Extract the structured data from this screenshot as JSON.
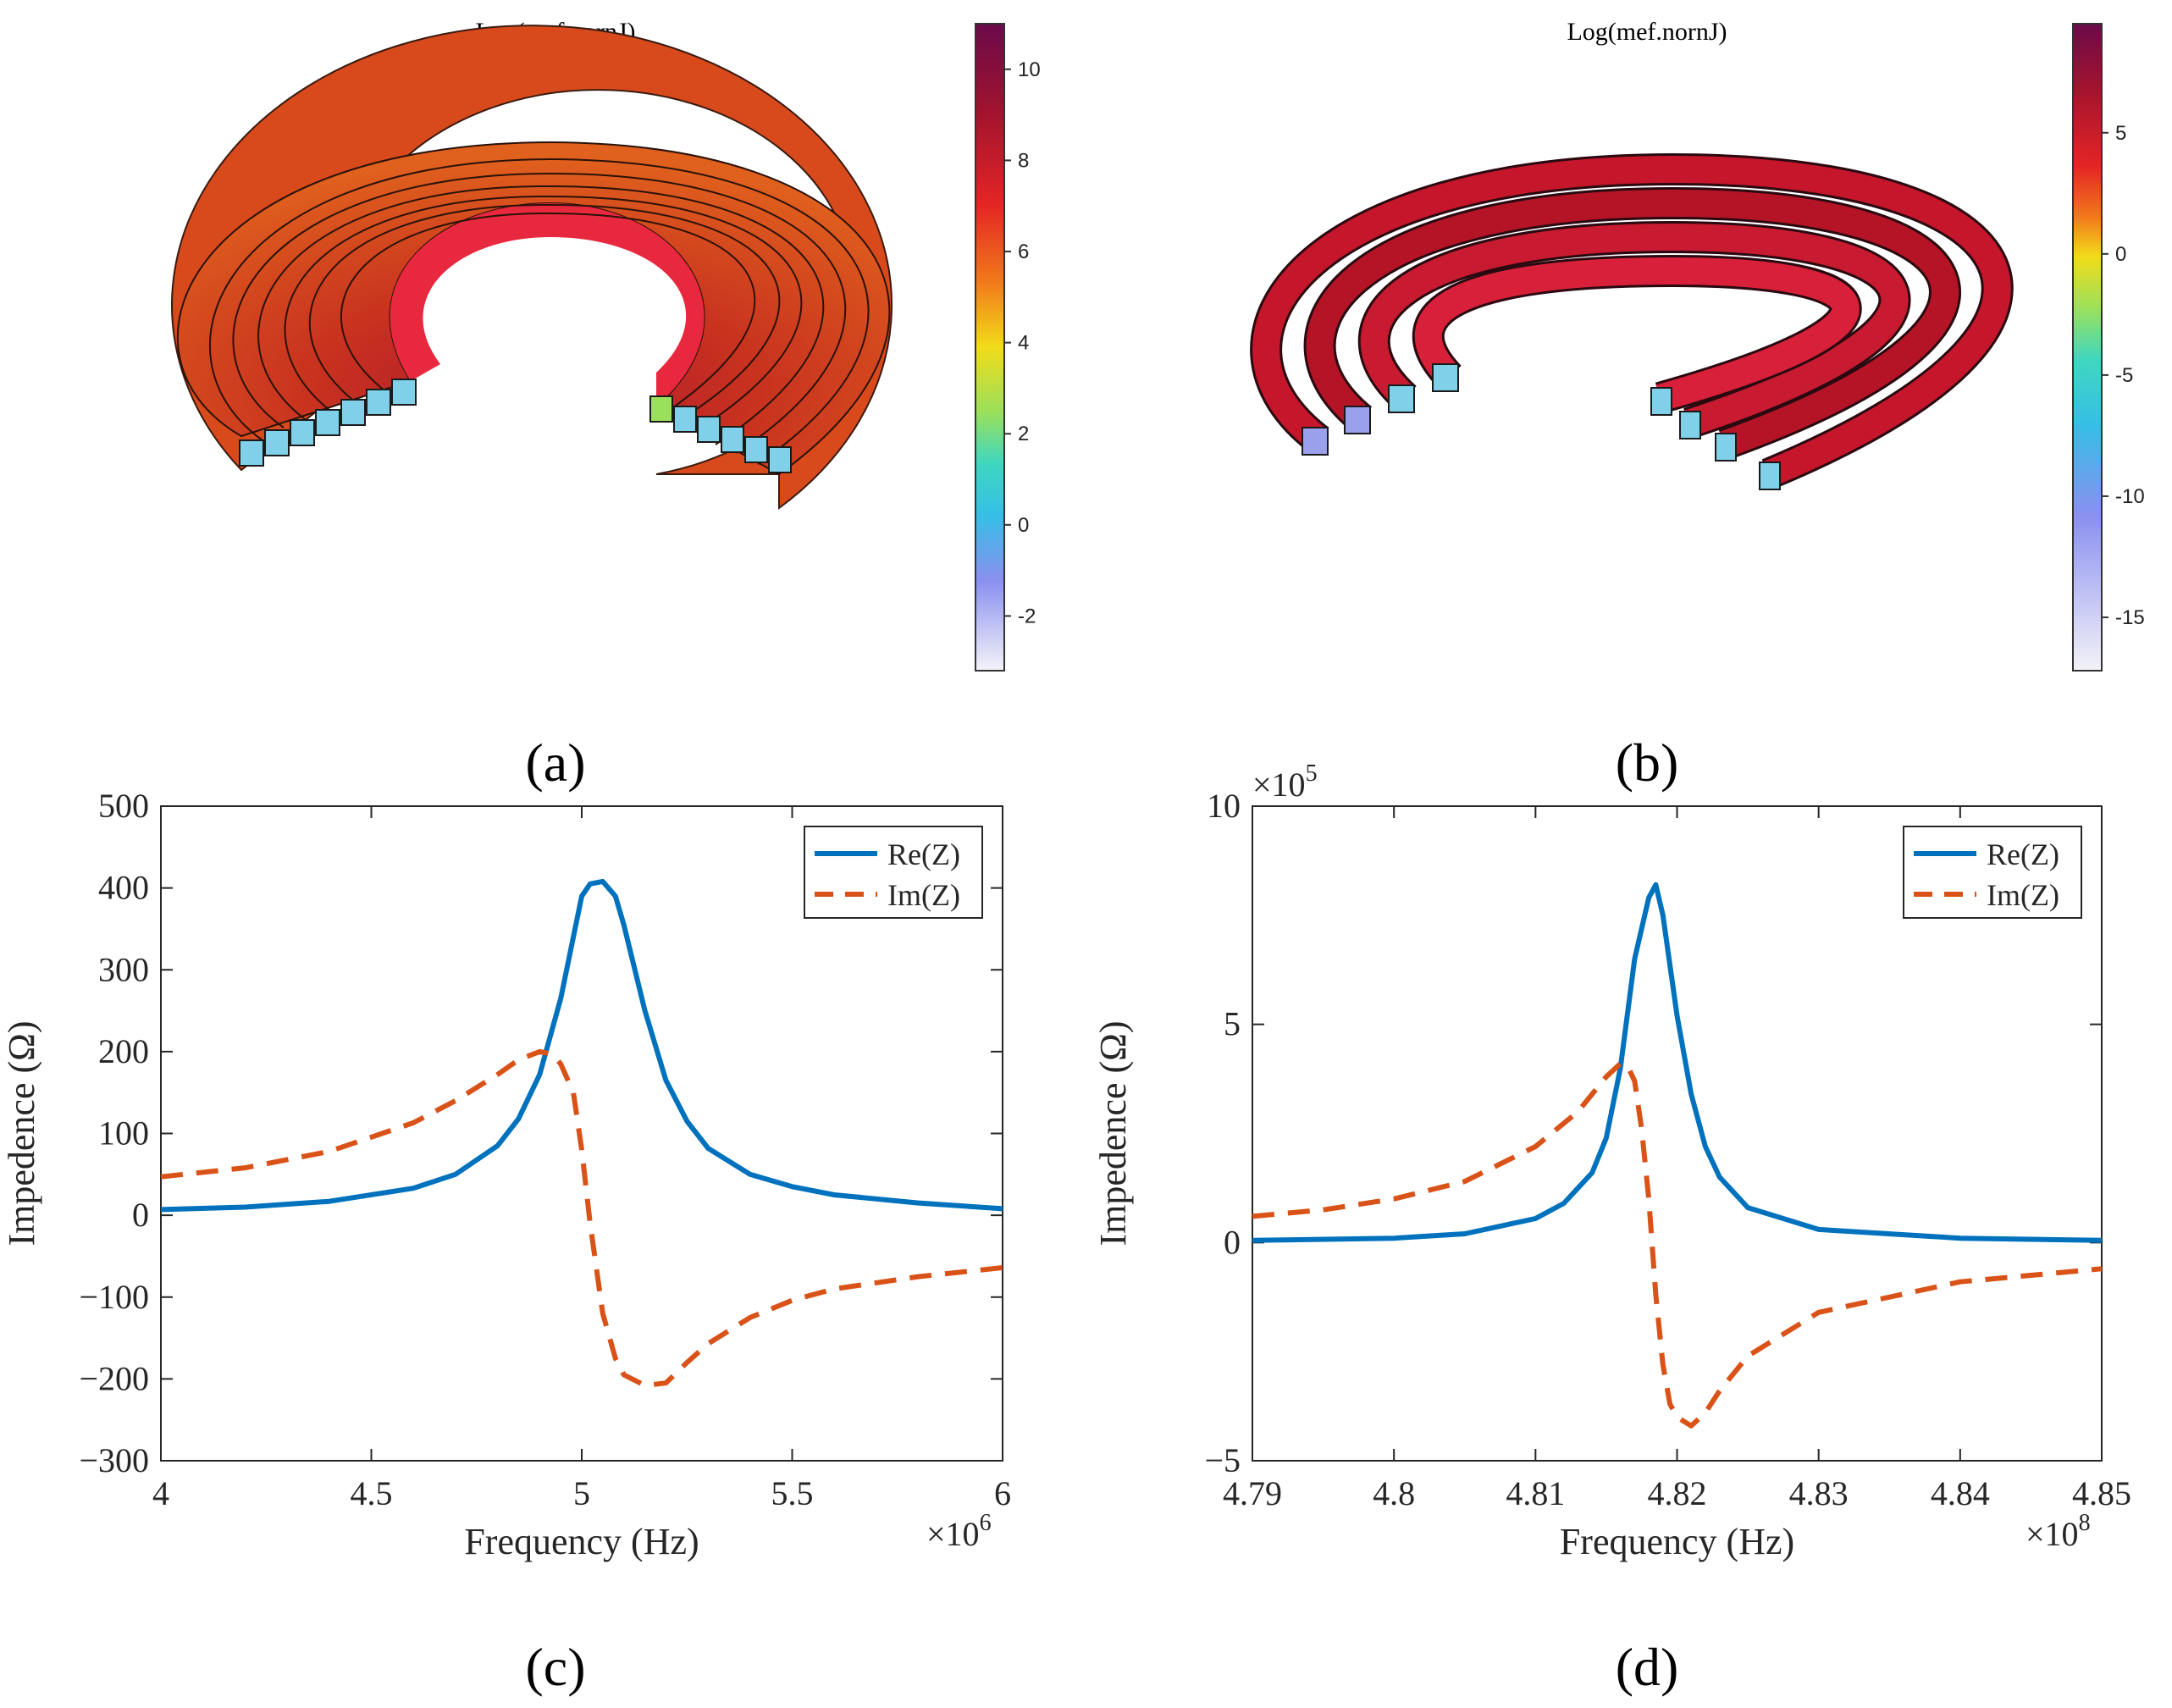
{
  "colors": {
    "re_line": "#0072BD",
    "im_line": "#D95319",
    "axis": "#262626",
    "coil_orange": "#E0541F",
    "coil_red": "#B81E2C",
    "coil_bore": "#E8283E",
    "port_fill": "#7FD0E8",
    "port_core": "#8E8FE6"
  },
  "panels": {
    "a": {
      "caption": "(a)",
      "colorbar_title": "Log(mef.nornJ)",
      "colorbar_ticks": [
        "10",
        "8",
        "6",
        "4",
        "2",
        "0",
        "-2"
      ]
    },
    "b": {
      "caption": "(b)",
      "colorbar_title": "Log(mef.nornJ)",
      "colorbar_ticks": [
        "5",
        "0",
        "-5",
        "-10",
        "-15"
      ]
    },
    "c": {
      "caption": "(c)"
    },
    "d": {
      "caption": "(d)"
    }
  },
  "chart_data": [
    {
      "type": "line",
      "panel": "c",
      "xlabel": "Frequency (Hz)",
      "ylabel": "Impedence (Ω)",
      "x_exponent": "×10",
      "x_exponent_power": "6",
      "xlim": [
        4,
        6
      ],
      "ylim": [
        -300,
        500
      ],
      "xticks": [
        4,
        4.5,
        5,
        5.5,
        6
      ],
      "xtick_labels": [
        "4",
        "4.5",
        "5",
        "5.5",
        "6"
      ],
      "yticks": [
        -300,
        -200,
        -100,
        0,
        100,
        200,
        300,
        400,
        500
      ],
      "ytick_labels": [
        "−300",
        "−200",
        "−100",
        "0",
        "100",
        "200",
        "300",
        "400",
        "500"
      ],
      "legend": {
        "position": "top-right",
        "entries": [
          "Re(Z)",
          "Im(Z)"
        ]
      },
      "series": [
        {
          "name": "Re(Z)",
          "style": "solid",
          "x": [
            4.0,
            4.2,
            4.4,
            4.6,
            4.7,
            4.8,
            4.85,
            4.9,
            4.95,
            5.0,
            5.02,
            5.05,
            5.08,
            5.1,
            5.15,
            5.2,
            5.25,
            5.3,
            5.4,
            5.5,
            5.6,
            5.8,
            6.0
          ],
          "y": [
            7,
            10,
            17,
            33,
            50,
            85,
            118,
            172,
            265,
            390,
            405,
            408,
            390,
            355,
            250,
            165,
            115,
            82,
            50,
            35,
            25,
            15,
            8
          ]
        },
        {
          "name": "Im(Z)",
          "style": "dashed",
          "x": [
            4.0,
            4.2,
            4.4,
            4.6,
            4.7,
            4.8,
            4.85,
            4.9,
            4.93,
            4.95,
            4.98,
            5.0,
            5.02,
            5.05,
            5.08,
            5.1,
            5.15,
            5.2,
            5.25,
            5.3,
            5.4,
            5.5,
            5.6,
            5.8,
            6.0
          ],
          "y": [
            47,
            58,
            78,
            113,
            140,
            172,
            190,
            200,
            197,
            185,
            150,
            80,
            -10,
            -120,
            -175,
            -195,
            -208,
            -205,
            -180,
            -157,
            -125,
            -104,
            -90,
            -75,
            -64
          ]
        }
      ]
    },
    {
      "type": "line",
      "panel": "d",
      "xlabel": "Frequency (Hz)",
      "ylabel": "Impedence (Ω)",
      "x_exponent": "×10",
      "x_exponent_power": "8",
      "y_exponent": "×10",
      "y_exponent_power": "5",
      "xlim": [
        4.79,
        4.85
      ],
      "ylim": [
        -5,
        10
      ],
      "xticks": [
        4.79,
        4.8,
        4.81,
        4.82,
        4.83,
        4.84,
        4.85
      ],
      "xtick_labels": [
        "4.79",
        "4.8",
        "4.81",
        "4.82",
        "4.83",
        "4.84",
        "4.85"
      ],
      "yticks": [
        -5,
        0,
        5,
        10
      ],
      "ytick_labels": [
        "−5",
        "0",
        "5",
        "10"
      ],
      "legend": {
        "position": "top-right",
        "entries": [
          "Re(Z)",
          "Im(Z)"
        ]
      },
      "series": [
        {
          "name": "Re(Z)",
          "style": "solid",
          "x": [
            4.79,
            4.8,
            4.805,
            4.81,
            4.812,
            4.814,
            4.815,
            4.816,
            4.817,
            4.818,
            4.8185,
            4.819,
            4.82,
            4.821,
            4.822,
            4.823,
            4.825,
            4.83,
            4.84,
            4.85
          ],
          "y": [
            0.05,
            0.1,
            0.2,
            0.55,
            0.9,
            1.6,
            2.4,
            4.0,
            6.5,
            7.9,
            8.2,
            7.5,
            5.2,
            3.4,
            2.2,
            1.5,
            0.8,
            0.3,
            0.1,
            0.05
          ]
        },
        {
          "name": "Im(Z)",
          "style": "dashed",
          "x": [
            4.79,
            4.795,
            4.8,
            4.805,
            4.81,
            4.813,
            4.815,
            4.816,
            4.8165,
            4.817,
            4.8175,
            4.818,
            4.8185,
            4.819,
            4.8195,
            4.82,
            4.821,
            4.822,
            4.823,
            4.825,
            4.83,
            4.84,
            4.85
          ],
          "y": [
            0.6,
            0.75,
            1.0,
            1.4,
            2.2,
            3.0,
            3.8,
            4.1,
            4.05,
            3.7,
            2.6,
            1.0,
            -1.2,
            -2.8,
            -3.7,
            -4.0,
            -4.2,
            -3.9,
            -3.4,
            -2.6,
            -1.6,
            -0.9,
            -0.6
          ]
        }
      ]
    }
  ]
}
